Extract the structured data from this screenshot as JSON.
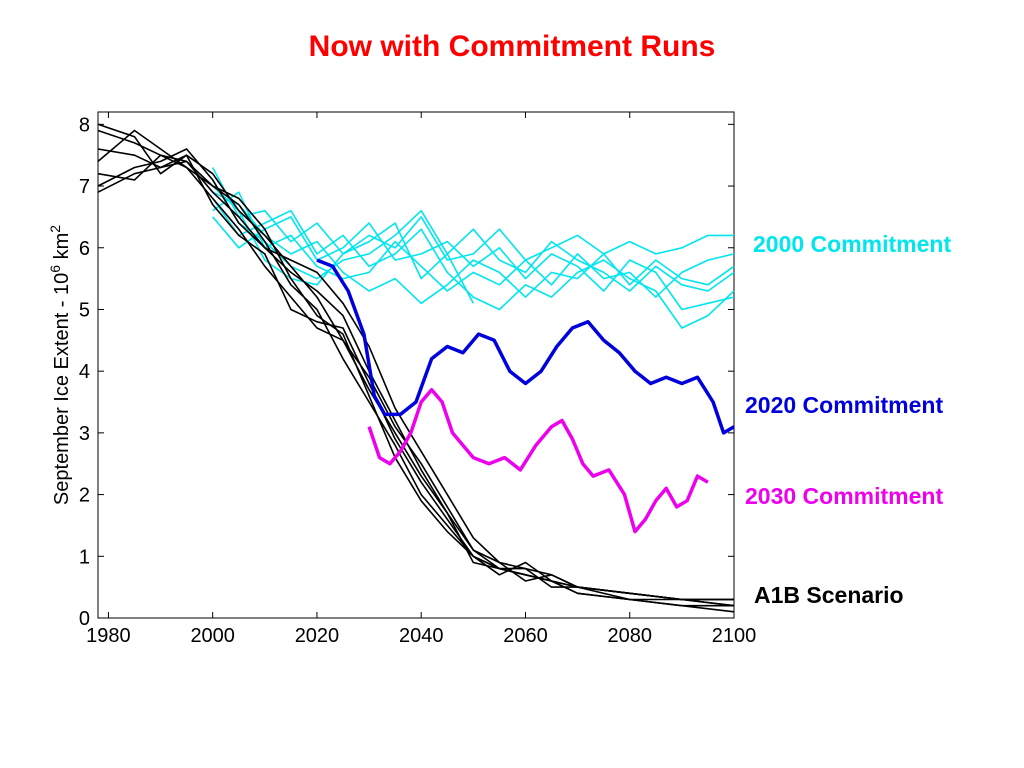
{
  "title": "Now with Commitment Runs",
  "colors": {
    "title": "#ff0000",
    "a1b": "#000000",
    "c2000": "#00e5ee",
    "c2020": "#0000dd",
    "c2030": "#ee00ee"
  },
  "labels": {
    "c2000": "2000 Commitment",
    "c2020": "2020 Commitment",
    "c2030": "2030 Commitment",
    "a1b": "A1B Scenario"
  },
  "chart_data": {
    "type": "line",
    "title": "Now with Commitment Runs",
    "xlabel": "",
    "ylabel": "September Ice Extent - 10^6 km^2",
    "ylabel_parts": {
      "main": "September Ice Extent - 10",
      "sup1": "6",
      "unit": " km",
      "sup2": "2"
    },
    "xlim": [
      1978,
      2100
    ],
    "ylim": [
      0,
      8.2
    ],
    "xticks": [
      "1980",
      "2000",
      "2020",
      "2040",
      "2060",
      "2080",
      "2100"
    ],
    "yticks": [
      "0",
      "1",
      "2",
      "3",
      "4",
      "5",
      "6",
      "7",
      "8"
    ],
    "grid": false,
    "series": [
      {
        "group": "a1b",
        "x": [
          1978,
          1985,
          1990,
          1995,
          2000,
          2005,
          2010,
          2015,
          2020,
          2025,
          2030,
          2035,
          2040,
          2045,
          2050,
          2055,
          2060,
          2065,
          2070,
          2080,
          2090,
          2100
        ],
        "y": [
          7.9,
          7.7,
          7.5,
          7.4,
          6.9,
          6.5,
          6.0,
          5.6,
          5.3,
          4.9,
          4.0,
          3.2,
          2.4,
          1.7,
          0.9,
          0.8,
          0.7,
          0.6,
          0.5,
          0.4,
          0.3,
          0.3
        ]
      },
      {
        "group": "a1b",
        "x": [
          1978,
          1985,
          1990,
          1995,
          2000,
          2005,
          2010,
          2015,
          2020,
          2025,
          2030,
          2035,
          2040,
          2045,
          2050,
          2055,
          2060,
          2065,
          2070,
          2080,
          2090,
          2100
        ],
        "y": [
          7.4,
          7.9,
          7.6,
          7.3,
          7.0,
          6.8,
          6.3,
          5.5,
          4.9,
          4.6,
          3.6,
          2.6,
          1.9,
          1.4,
          1.0,
          0.8,
          0.8,
          0.5,
          0.5,
          0.4,
          0.3,
          0.2
        ]
      },
      {
        "group": "a1b",
        "x": [
          1978,
          1985,
          1990,
          1995,
          2000,
          2005,
          2010,
          2015,
          2020,
          2025,
          2030,
          2035,
          2040,
          2045,
          2050,
          2055,
          2060,
          2065,
          2070,
          2080,
          2090,
          2100
        ],
        "y": [
          7.0,
          7.3,
          7.4,
          7.6,
          7.1,
          6.4,
          6.0,
          5.8,
          5.6,
          5.1,
          4.4,
          3.4,
          2.7,
          2.0,
          1.3,
          0.9,
          0.6,
          0.7,
          0.5,
          0.4,
          0.3,
          0.3
        ]
      },
      {
        "group": "a1b",
        "x": [
          1978,
          1985,
          1990,
          1995,
          2000,
          2005,
          2010,
          2015,
          2020,
          2025,
          2030,
          2035,
          2040,
          2045,
          2050,
          2055,
          2060,
          2065,
          2070,
          2080,
          2090,
          2100
        ],
        "y": [
          6.9,
          7.2,
          7.3,
          7.5,
          6.7,
          6.2,
          5.9,
          5.0,
          4.8,
          4.7,
          3.8,
          2.9,
          2.2,
          1.6,
          1.0,
          0.8,
          0.7,
          0.6,
          0.4,
          0.3,
          0.2,
          0.2
        ]
      },
      {
        "group": "a1b",
        "x": [
          1978,
          1985,
          1990,
          1995,
          2000,
          2005,
          2010,
          2015,
          2020,
          2025,
          2030,
          2035,
          2040,
          2045,
          2050,
          2055,
          2060,
          2065,
          2070,
          2080,
          2090,
          2100
        ],
        "y": [
          8.0,
          7.8,
          7.2,
          7.5,
          7.2,
          6.6,
          6.2,
          5.7,
          5.2,
          4.5,
          3.9,
          3.1,
          2.5,
          1.8,
          1.1,
          0.9,
          0.8,
          0.7,
          0.5,
          0.3,
          0.3,
          0.2
        ]
      },
      {
        "group": "a1b",
        "x": [
          1978,
          1985,
          1990,
          1995,
          2000,
          2005,
          2010,
          2015,
          2020,
          2025,
          2030,
          2035,
          2040,
          2045,
          2050,
          2055,
          2060,
          2065,
          2070,
          2080,
          2090,
          2100
        ],
        "y": [
          7.6,
          7.5,
          7.3,
          7.4,
          7.0,
          6.7,
          6.1,
          5.4,
          5.0,
          4.2,
          3.5,
          2.8,
          2.0,
          1.5,
          1.0,
          0.7,
          0.9,
          0.6,
          0.5,
          0.4,
          0.3,
          0.3
        ]
      },
      {
        "group": "a1b",
        "x": [
          1978,
          1985,
          1990,
          1995,
          2000,
          2005,
          2010,
          2015,
          2020,
          2025,
          2030,
          2035,
          2040,
          2045,
          2050,
          2055,
          2060,
          2065,
          2070,
          2080,
          2090,
          2100
        ],
        "y": [
          7.2,
          7.1,
          7.5,
          7.3,
          6.8,
          6.3,
          5.7,
          5.2,
          4.7,
          4.5,
          3.7,
          3.0,
          2.3,
          1.7,
          1.1,
          0.8,
          0.7,
          0.6,
          0.4,
          0.3,
          0.2,
          0.1
        ]
      },
      {
        "group": "c2000",
        "x": [
          2000,
          2005,
          2010,
          2015,
          2020,
          2025,
          2030,
          2035,
          2040,
          2045,
          2050,
          2055,
          2060,
          2065,
          2070,
          2075,
          2080,
          2085,
          2090,
          2095,
          2100
        ],
        "y": [
          7.3,
          6.5,
          6.6,
          6.1,
          6.4,
          5.9,
          6.2,
          6.0,
          6.5,
          5.8,
          5.9,
          6.3,
          5.8,
          6.0,
          6.2,
          5.9,
          6.1,
          5.9,
          6.0,
          6.2,
          6.2
        ]
      },
      {
        "group": "c2000",
        "x": [
          2000,
          2005,
          2010,
          2015,
          2020,
          2025,
          2030,
          2035,
          2040,
          2045,
          2050,
          2055,
          2060,
          2065,
          2070,
          2075,
          2080,
          2085,
          2090,
          2095,
          2100
        ],
        "y": [
          6.9,
          6.7,
          6.2,
          5.9,
          6.1,
          5.6,
          5.3,
          5.5,
          5.1,
          5.4,
          5.8,
          5.6,
          5.2,
          5.6,
          5.5,
          5.9,
          5.4,
          5.8,
          5.5,
          5.4,
          5.7
        ]
      },
      {
        "group": "c2000",
        "x": [
          2000,
          2005,
          2010,
          2015,
          2020,
          2025,
          2030,
          2035,
          2040,
          2045,
          2050,
          2055,
          2060,
          2065,
          2070,
          2075,
          2080,
          2085,
          2090,
          2095,
          2100
        ],
        "y": [
          6.8,
          6.2,
          6.4,
          6.6,
          5.9,
          6.2,
          5.7,
          5.9,
          6.3,
          5.6,
          5.2,
          5.0,
          5.4,
          5.2,
          5.6,
          5.8,
          5.5,
          5.3,
          4.7,
          4.9,
          5.3
        ]
      },
      {
        "group": "c2000",
        "x": [
          2000,
          2005,
          2010,
          2015,
          2020,
          2025,
          2030,
          2035,
          2040,
          2045,
          2050,
          2055,
          2060,
          2065,
          2070,
          2075,
          2080,
          2085,
          2090,
          2095,
          2100
        ],
        "y": [
          6.5,
          6.0,
          6.3,
          6.5,
          5.8,
          6.0,
          6.4,
          5.8,
          5.9,
          6.1,
          5.7,
          6.0,
          5.5,
          5.9,
          5.7,
          5.3,
          5.8,
          5.6,
          5.0,
          5.1,
          5.2
        ]
      },
      {
        "group": "c2000",
        "x": [
          2000,
          2005,
          2010,
          2015,
          2020,
          2025,
          2030,
          2035,
          2040,
          2045,
          2050,
          2055,
          2060,
          2065,
          2070,
          2075,
          2080,
          2085,
          2090,
          2095,
          2100
        ],
        "y": [
          7.0,
          6.6,
          5.8,
          5.5,
          5.4,
          5.9,
          6.1,
          6.4,
          5.5,
          5.9,
          6.3,
          5.8,
          5.6,
          6.1,
          5.8,
          5.6,
          5.3,
          5.7,
          5.4,
          5.3,
          5.6
        ]
      },
      {
        "group": "c2000",
        "x": [
          2000,
          2005,
          2010,
          2015,
          2020,
          2025,
          2030,
          2035,
          2040,
          2045,
          2050,
          2055,
          2060,
          2065,
          2070,
          2075,
          2080,
          2085,
          2090,
          2095,
          2100
        ],
        "y": [
          6.6,
          6.9,
          6.0,
          6.2,
          5.7,
          5.5,
          5.6,
          6.1,
          5.7,
          5.3,
          5.6,
          5.4,
          5.8,
          5.4,
          5.9,
          5.5,
          5.6,
          5.2,
          5.6,
          5.8,
          5.9
        ]
      },
      {
        "group": "c2000",
        "x": [
          2000,
          2005,
          2010,
          2015,
          2020,
          2025,
          2030,
          2035,
          2040,
          2045,
          2050
        ],
        "y": [
          7.1,
          6.4,
          6.1,
          5.7,
          5.5,
          5.8,
          5.9,
          6.2,
          6.6,
          5.9,
          5.1
        ]
      },
      {
        "group": "c2020",
        "x": [
          2020,
          2023,
          2026,
          2029,
          2031,
          2033,
          2036,
          2039,
          2042,
          2045,
          2048,
          2051,
          2054,
          2057,
          2060,
          2063,
          2066,
          2069,
          2072,
          2075,
          2078,
          2081,
          2084,
          2087,
          2090,
          2093,
          2096,
          2098,
          2100
        ],
        "y": [
          5.8,
          5.7,
          5.3,
          4.6,
          3.6,
          3.3,
          3.3,
          3.5,
          4.2,
          4.4,
          4.3,
          4.6,
          4.5,
          4.0,
          3.8,
          4.0,
          4.4,
          4.7,
          4.8,
          4.5,
          4.3,
          4.0,
          3.8,
          3.9,
          3.8,
          3.9,
          3.5,
          3.0,
          3.1
        ]
      },
      {
        "group": "c2030",
        "x": [
          2030,
          2032,
          2034,
          2036,
          2038,
          2040,
          2042,
          2044,
          2046,
          2048,
          2050,
          2053,
          2056,
          2059,
          2062,
          2065,
          2067,
          2069,
          2071,
          2073,
          2076,
          2079,
          2081,
          2083,
          2085,
          2087,
          2089,
          2091,
          2093,
          2095
        ],
        "y": [
          3.1,
          2.6,
          2.5,
          2.7,
          3.0,
          3.5,
          3.7,
          3.5,
          3.0,
          2.8,
          2.6,
          2.5,
          2.6,
          2.4,
          2.8,
          3.1,
          3.2,
          2.9,
          2.5,
          2.3,
          2.4,
          2.0,
          1.4,
          1.6,
          1.9,
          2.1,
          1.8,
          1.9,
          2.3,
          2.2
        ]
      }
    ]
  }
}
